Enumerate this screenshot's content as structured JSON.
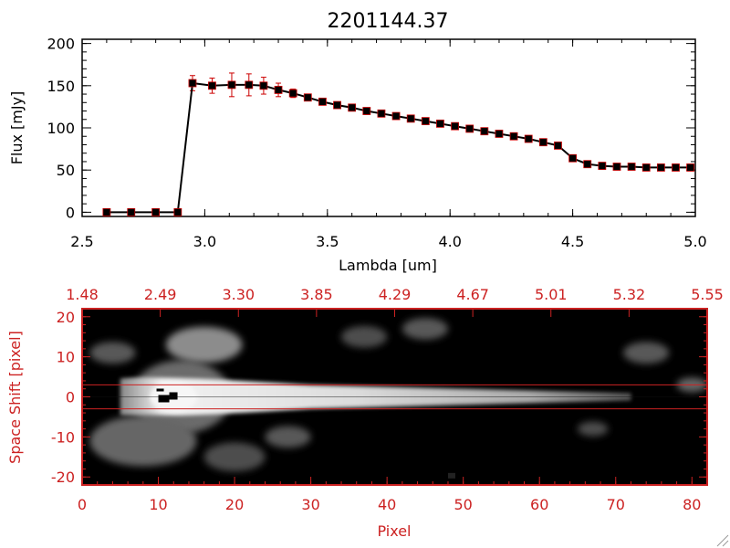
{
  "chart_data": [
    {
      "type": "line",
      "title": "2201144.37",
      "xlabel": "Lambda [um]",
      "ylabel": "Flux [mJy]",
      "xlim": [
        2.5,
        5.0
      ],
      "ylim": [
        -5,
        205
      ],
      "x_ticks": [
        "2.5",
        "3.0",
        "3.5",
        "4.0",
        "4.5",
        "5.0"
      ],
      "y_ticks": [
        "0",
        "50",
        "100",
        "150",
        "200"
      ],
      "colors": {
        "line": "#000000",
        "marker": "#000000",
        "errorbar": "#cc0000",
        "marker_edge": "#cc0000"
      },
      "series": [
        {
          "x": [
            2.6,
            2.7,
            2.8,
            2.89,
            2.95,
            3.03,
            3.11,
            3.18,
            3.24,
            3.3,
            3.36,
            3.42,
            3.48,
            3.54,
            3.6,
            3.66,
            3.72,
            3.78,
            3.84,
            3.9,
            3.96,
            4.02,
            4.08,
            4.14,
            4.2,
            4.26,
            4.32,
            4.38,
            4.44,
            4.5,
            4.56,
            4.62,
            4.68,
            4.74,
            4.8,
            4.86,
            4.92,
            4.98
          ],
          "y": [
            0,
            0,
            0,
            0,
            153,
            150,
            151,
            151,
            150,
            145,
            141,
            136,
            131,
            127,
            124,
            120,
            117,
            114,
            111,
            108,
            105,
            102,
            99,
            96,
            93,
            90,
            87,
            83,
            79,
            64,
            57,
            55,
            54,
            54,
            53,
            53,
            53,
            53
          ],
          "yerr": [
            0,
            0,
            0,
            0,
            9,
            9,
            14,
            13,
            10,
            8,
            5,
            3,
            3,
            3,
            3,
            3,
            3,
            3,
            3,
            3,
            3,
            3,
            3,
            3,
            3,
            3,
            3,
            3,
            3,
            3,
            3,
            3,
            3,
            3,
            3,
            3,
            3,
            3
          ]
        }
      ]
    },
    {
      "type": "heatmap",
      "xlabel": "Pixel",
      "ylabel": "Space Shift [pixel]",
      "xlim": [
        0,
        82
      ],
      "ylim": [
        -22,
        22
      ],
      "x_ticks": [
        "0",
        "10",
        "20",
        "30",
        "40",
        "50",
        "60",
        "70",
        "80"
      ],
      "y_ticks": [
        "-20",
        "-10",
        "0",
        "10",
        "20"
      ],
      "top_ticks": [
        "1.48",
        "2.49",
        "3.30",
        "3.85",
        "4.29",
        "4.67",
        "5.01",
        "5.32",
        "5.55"
      ],
      "extraction_window": [
        -3,
        3
      ],
      "colors": {
        "axes": "#cc2222",
        "background": "#000000"
      },
      "features": [
        {
          "kind": "trace",
          "x_start": 5,
          "x_end": 72,
          "y_center": 0,
          "peak_x": 10,
          "brightness": 0.9
        },
        {
          "kind": "blob",
          "x": 16,
          "y": 13,
          "size": 5,
          "brightness": 0.55
        },
        {
          "kind": "blob",
          "x": 4,
          "y": 11,
          "size": 3,
          "brightness": 0.35
        },
        {
          "kind": "blob",
          "x": 37,
          "y": 15,
          "size": 3,
          "brightness": 0.3
        },
        {
          "kind": "blob",
          "x": 45,
          "y": 17,
          "size": 3,
          "brightness": 0.35
        },
        {
          "kind": "blob",
          "x": 74,
          "y": 11,
          "size": 3,
          "brightness": 0.35
        },
        {
          "kind": "blob",
          "x": 27,
          "y": -10,
          "size": 3,
          "brightness": 0.35
        },
        {
          "kind": "blob",
          "x": 8,
          "y": -11,
          "size": 7,
          "brightness": 0.4
        },
        {
          "kind": "blob",
          "x": 20,
          "y": -15,
          "size": 4,
          "brightness": 0.3
        },
        {
          "kind": "blob",
          "x": 80,
          "y": 3,
          "size": 2,
          "brightness": 0.4
        },
        {
          "kind": "blob",
          "x": 67,
          "y": -8,
          "size": 2,
          "brightness": 0.3
        }
      ]
    }
  ]
}
